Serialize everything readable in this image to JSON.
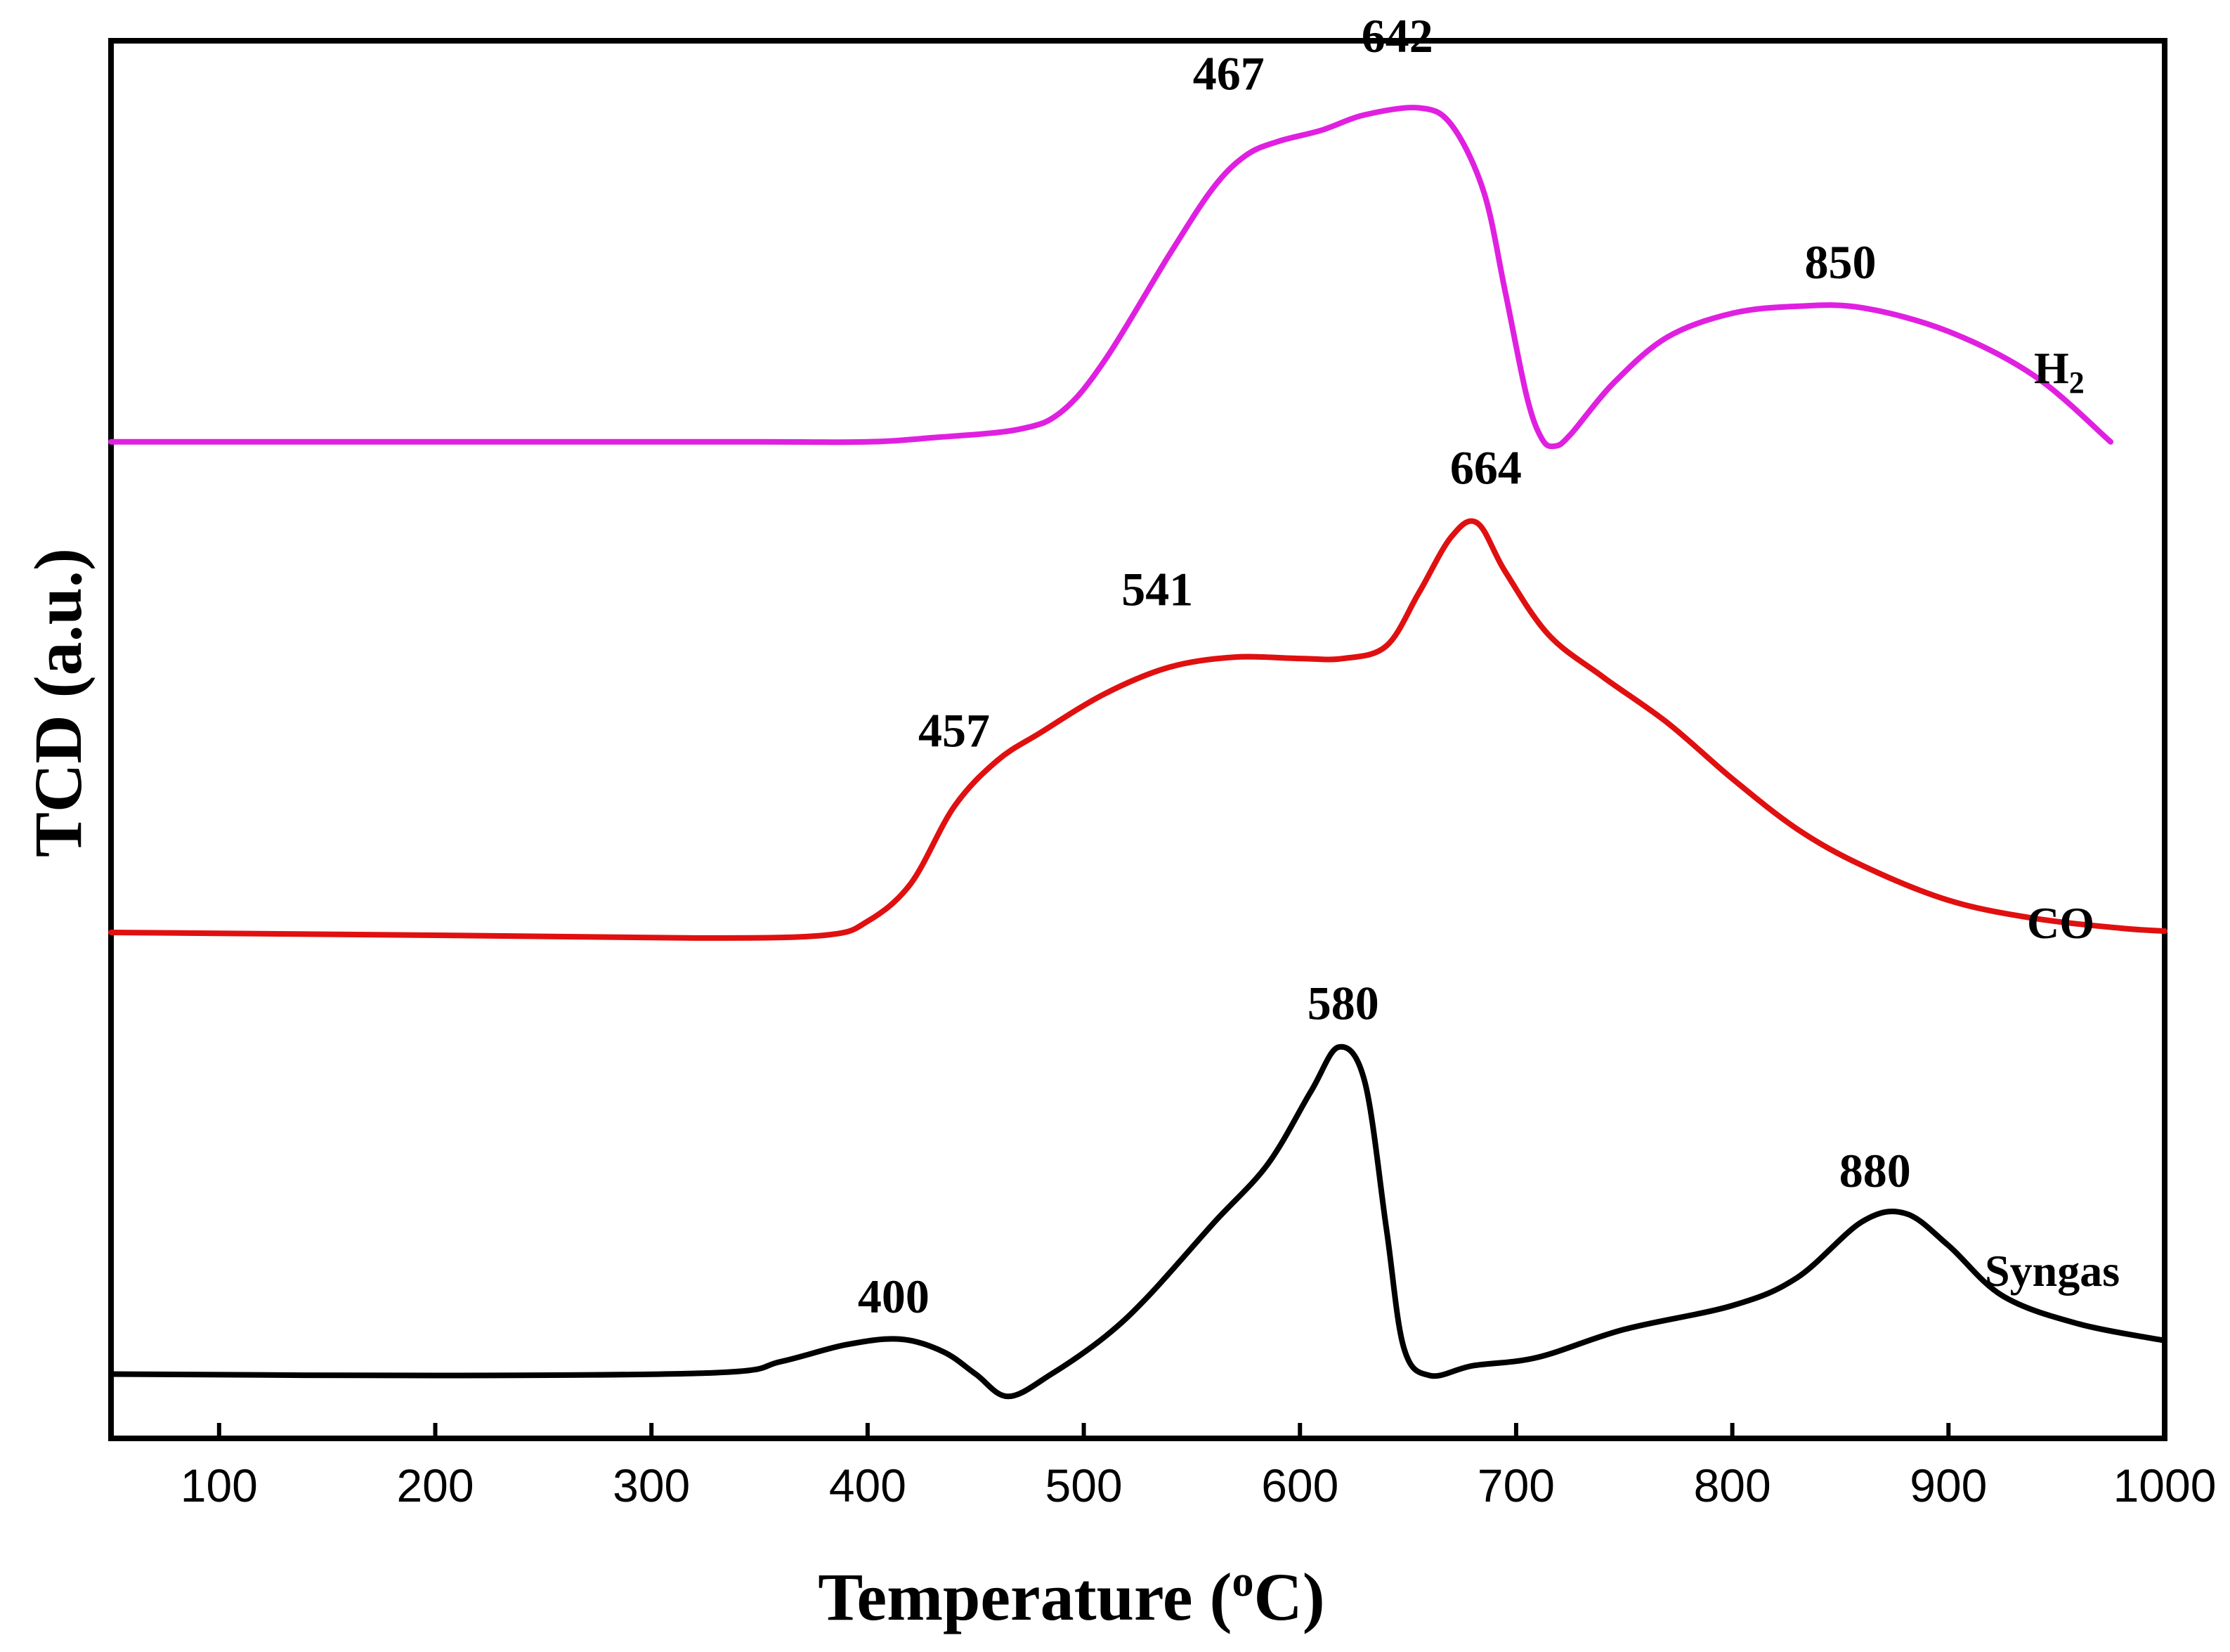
{
  "chart_data": {
    "type": "line",
    "title": "",
    "xlabel": "Temperature",
    "xlabel_unit_prefix": "o",
    "xlabel_unit": "C",
    "ylabel": "TCD (a.u.)",
    "xlim": [
      50,
      1000
    ],
    "ylim": [
      0,
      10
    ],
    "x_ticks": [
      100,
      200,
      300,
      400,
      500,
      600,
      700,
      800,
      900,
      1000
    ],
    "y_ticks_shown": false,
    "grid": false,
    "series": [
      {
        "name": "H2",
        "label_text": "H",
        "label_subscript": "2",
        "color": "#e020e0",
        "points": [
          [
            50,
            7.13
          ],
          [
            200,
            7.13
          ],
          [
            350,
            7.13
          ],
          [
            400,
            7.13
          ],
          [
            430,
            7.16
          ],
          [
            470,
            7.22
          ],
          [
            490,
            7.35
          ],
          [
            510,
            7.72
          ],
          [
            540,
            8.48
          ],
          [
            560,
            8.95
          ],
          [
            575,
            9.18
          ],
          [
            590,
            9.28
          ],
          [
            610,
            9.36
          ],
          [
            630,
            9.47
          ],
          [
            655,
            9.52
          ],
          [
            670,
            9.4
          ],
          [
            685,
            8.92
          ],
          [
            695,
            8.2
          ],
          [
            705,
            7.45
          ],
          [
            712,
            7.15
          ],
          [
            718,
            7.1
          ],
          [
            725,
            7.18
          ],
          [
            745,
            7.55
          ],
          [
            770,
            7.88
          ],
          [
            800,
            8.05
          ],
          [
            830,
            8.1
          ],
          [
            860,
            8.09
          ],
          [
            900,
            7.92
          ],
          [
            940,
            7.6
          ],
          [
            975,
            7.13
          ]
        ],
        "peak_labels": [
          {
            "text": "467",
            "x": 567,
            "y": 9.65
          },
          {
            "text": "642",
            "x": 645,
            "y": 9.92
          },
          {
            "text": "850",
            "x": 850,
            "y": 8.3
          }
        ]
      },
      {
        "name": "CO",
        "label_text": "CO",
        "label_subscript": "",
        "color": "#e01010",
        "points": [
          [
            50,
            3.62
          ],
          [
            200,
            3.6
          ],
          [
            320,
            3.58
          ],
          [
            380,
            3.6
          ],
          [
            400,
            3.7
          ],
          [
            420,
            3.97
          ],
          [
            440,
            4.52
          ],
          [
            460,
            4.85
          ],
          [
            480,
            5.05
          ],
          [
            510,
            5.33
          ],
          [
            540,
            5.52
          ],
          [
            570,
            5.59
          ],
          [
            600,
            5.58
          ],
          [
            620,
            5.58
          ],
          [
            640,
            5.67
          ],
          [
            655,
            6.05
          ],
          [
            670,
            6.45
          ],
          [
            682,
            6.55
          ],
          [
            695,
            6.2
          ],
          [
            715,
            5.75
          ],
          [
            740,
            5.45
          ],
          [
            770,
            5.12
          ],
          [
            800,
            4.72
          ],
          [
            830,
            4.36
          ],
          [
            860,
            4.1
          ],
          [
            900,
            3.85
          ],
          [
            940,
            3.72
          ],
          [
            980,
            3.65
          ],
          [
            1000,
            3.63
          ]
        ],
        "peak_labels": [
          {
            "text": "457",
            "x": 440,
            "y": 4.95
          },
          {
            "text": "541",
            "x": 534,
            "y": 5.96
          },
          {
            "text": "664",
            "x": 686,
            "y": 6.83
          }
        ]
      },
      {
        "name": "Syngas",
        "label_text": "Syngas",
        "label_subscript": "",
        "color": "#000000",
        "points": [
          [
            50,
            0.46
          ],
          [
            200,
            0.45
          ],
          [
            330,
            0.47
          ],
          [
            360,
            0.55
          ],
          [
            390,
            0.67
          ],
          [
            415,
            0.71
          ],
          [
            435,
            0.62
          ],
          [
            450,
            0.46
          ],
          [
            465,
            0.3
          ],
          [
            485,
            0.46
          ],
          [
            510,
            0.73
          ],
          [
            530,
            1.02
          ],
          [
            560,
            1.54
          ],
          [
            585,
            1.96
          ],
          [
            605,
            2.48
          ],
          [
            618,
            2.8
          ],
          [
            630,
            2.55
          ],
          [
            640,
            1.5
          ],
          [
            648,
            0.65
          ],
          [
            660,
            0.45
          ],
          [
            680,
            0.52
          ],
          [
            710,
            0.58
          ],
          [
            750,
            0.78
          ],
          [
            800,
            0.95
          ],
          [
            830,
            1.15
          ],
          [
            860,
            1.55
          ],
          [
            880,
            1.61
          ],
          [
            900,
            1.38
          ],
          [
            925,
            1.02
          ],
          [
            960,
            0.82
          ],
          [
            1000,
            0.7
          ]
        ],
        "peak_labels": [
          {
            "text": "400",
            "x": 412,
            "y": 0.9
          },
          {
            "text": "580",
            "x": 620,
            "y": 3.0
          },
          {
            "text": "880",
            "x": 866,
            "y": 1.8
          }
        ]
      }
    ]
  }
}
